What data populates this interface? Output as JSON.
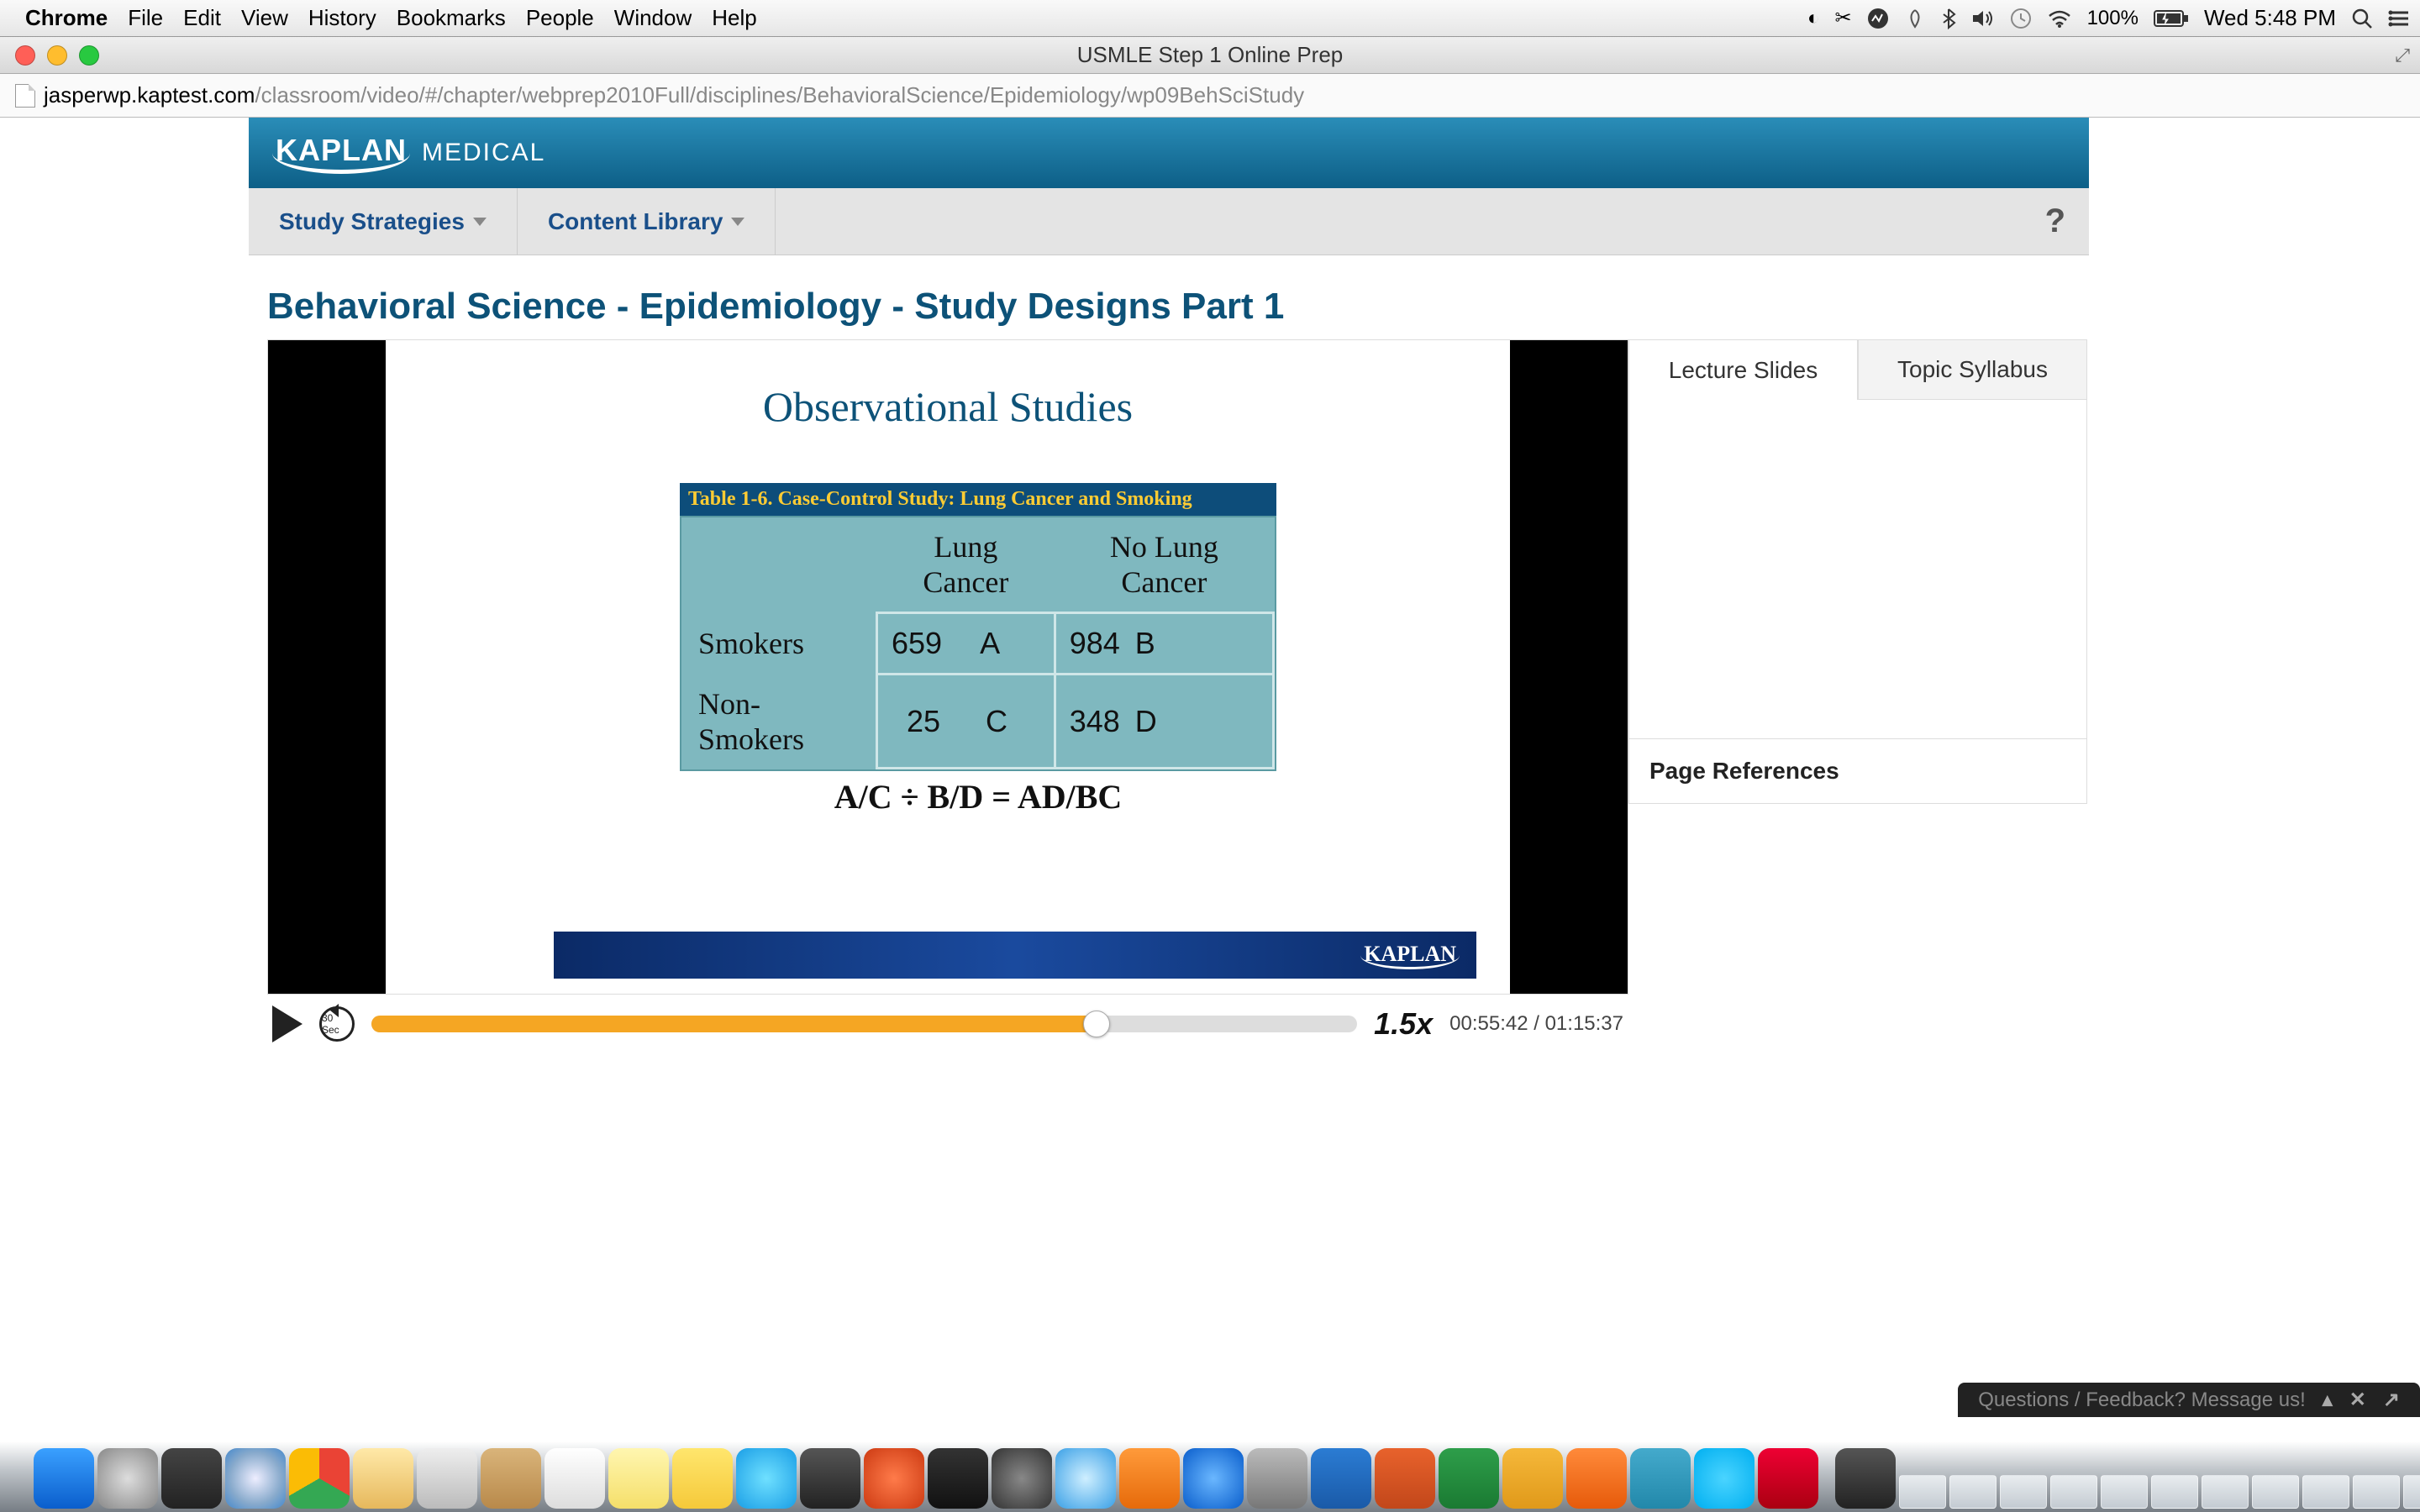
{
  "menubar": {
    "app": "Chrome",
    "items": [
      "File",
      "Edit",
      "View",
      "History",
      "Bookmarks",
      "People",
      "Window",
      "Help"
    ],
    "battery": "100%",
    "clock": "Wed 5:48 PM"
  },
  "window": {
    "title": "USMLE Step 1 Online Prep",
    "url_domain": "jasperwp.kaptest.com",
    "url_path": "/classroom/video/#/chapter/webprep2010Full/disciplines/BehavioralScience/Epidemiology/wp09BehSciStudy"
  },
  "kaplan": {
    "logo_main": "KAPLAN",
    "logo_sub": "MEDICAL",
    "nav": {
      "item0": "Study Strategies",
      "item1": "Content Library",
      "help": "?"
    },
    "page_title": "Behavioral Science - Epidemiology - Study Designs Part 1"
  },
  "slide": {
    "title": "Observational Studies",
    "table_caption": "Table 1-6.   Case-Control Study: Lung Cancer and Smoking",
    "col1": "Lung Cancer",
    "col2": "No Lung Cancer",
    "row1_label": "Smokers",
    "row1_c1_val": "659",
    "row1_c1_let": "A",
    "row1_c2_val": "984",
    "row1_c2_let": "B",
    "row2_label": "Non-Smokers",
    "row2_c1_val": "25",
    "row2_c1_let": "C",
    "row2_c2_val": "348",
    "row2_c2_let": "D",
    "formula": "A/C    ÷    B/D     =  AD/BC",
    "footer_logo": "KAPLAN",
    "colors": {
      "header_bg": "#0d4d7a",
      "header_fg": "#ffcc33",
      "body_bg": "#7fb8bf",
      "footer_bg": "#123a85"
    }
  },
  "player": {
    "back_label": "30 Sec",
    "speed": "1.5x",
    "elapsed": "00:55:42",
    "duration": "01:15:37",
    "progress_pct": 73.6,
    "colors": {
      "fill": "#f5a623",
      "track": "#dddddd"
    }
  },
  "sidebar": {
    "tab_active": "Lecture Slides",
    "tab_inactive": "Topic Syllabus",
    "section": "Page References"
  },
  "feedback": {
    "text": "Questions / Feedback? Message us!"
  },
  "dock": {
    "big_icons": [
      {
        "name": "finder",
        "bg": "linear-gradient(#3aa0ff,#0a5ecc)"
      },
      {
        "name": "launchpad",
        "bg": "radial-gradient(#ddd,#888)"
      },
      {
        "name": "mission",
        "bg": "linear-gradient(#444,#222)"
      },
      {
        "name": "safari",
        "bg": "radial-gradient(#eef,#8ac 60%,#48c)"
      },
      {
        "name": "chrome",
        "bg": "conic-gradient(#ea4335 0 120deg,#34a853 120deg 240deg,#fbbc05 240deg 360deg)"
      },
      {
        "name": "appstore-old",
        "bg": "linear-gradient(#ffe9a8,#e6b85c)"
      },
      {
        "name": "mail",
        "bg": "linear-gradient(#eee,#bbb)"
      },
      {
        "name": "contacts",
        "bg": "linear-gradient(#d9b47a,#b8894a)"
      },
      {
        "name": "reminders",
        "bg": "linear-gradient(#fff,#ddd)"
      },
      {
        "name": "notes",
        "bg": "linear-gradient(#fff6b0,#f5df6a)"
      },
      {
        "name": "stickies",
        "bg": "linear-gradient(#ffe66d,#f5c93a)"
      },
      {
        "name": "messages",
        "bg": "radial-gradient(#6fe0ff,#1a9ee6)"
      },
      {
        "name": "facetime",
        "bg": "linear-gradient(#555,#222)"
      },
      {
        "name": "photobooth",
        "bg": "radial-gradient(#ff7b4a,#cc3a12)"
      },
      {
        "name": "iphoto",
        "bg": "linear-gradient(#333,#111)"
      },
      {
        "name": "aperture",
        "bg": "radial-gradient(#888,#333)"
      },
      {
        "name": "itunes",
        "bg": "radial-gradient(#cfefff,#3aa0e6)"
      },
      {
        "name": "ibooks",
        "bg": "linear-gradient(#ff9a3a,#e66a0a)"
      },
      {
        "name": "appstore",
        "bg": "radial-gradient(#6ab7ff,#0a5ecc)"
      },
      {
        "name": "sysprefs",
        "bg": "linear-gradient(#bbb,#777)"
      },
      {
        "name": "word",
        "bg": "linear-gradient(#2b7cd3,#1a5aa8)"
      },
      {
        "name": "powerpoint",
        "bg": "linear-gradient(#e8622c,#c2471a)"
      },
      {
        "name": "excel",
        "bg": "linear-gradient(#2e9e4a,#1a7a32)"
      },
      {
        "name": "onenote",
        "bg": "linear-gradient(#f5b83a,#e0991a)"
      },
      {
        "name": "vlc",
        "bg": "linear-gradient(#ff8a3a,#e65a0a)"
      },
      {
        "name": "preview",
        "bg": "linear-gradient(#4ac,#28a)"
      },
      {
        "name": "skype",
        "bg": "radial-gradient(#4ad4ff,#00aff0)"
      },
      {
        "name": "acrobat",
        "bg": "linear-gradient(#e03,#a01)"
      }
    ],
    "small_icons_count": 16
  }
}
